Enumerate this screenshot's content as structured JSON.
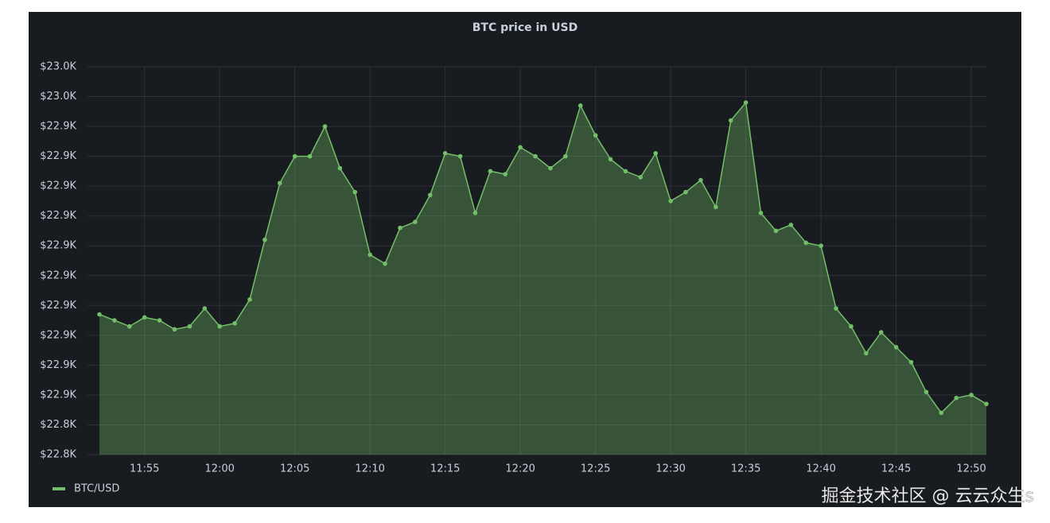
{
  "chart_data": {
    "type": "area",
    "title": "BTC price in USD",
    "categories": [
      null,
      null,
      null,
      "11:55",
      null,
      null,
      null,
      null,
      "12:00",
      null,
      null,
      null,
      null,
      "12:05",
      null,
      null,
      null,
      null,
      "12:10",
      null,
      null,
      null,
      null,
      "12:15",
      null,
      null,
      null,
      null,
      "12:20",
      null,
      null,
      null,
      null,
      "12:25",
      null,
      null,
      null,
      null,
      "12:30",
      null,
      null,
      null,
      null,
      "12:35",
      null,
      null,
      null,
      null,
      "12:40",
      null,
      null,
      null,
      null,
      "12:45",
      null,
      null,
      null,
      null,
      "12:50",
      null
    ],
    "series": [
      {
        "name": "BTC/USD",
        "color": "#73bf69",
        "values": [
          22877,
          22875,
          22873,
          22876,
          22875,
          22872,
          22873,
          22879,
          22873,
          22874,
          22882,
          22902,
          22921,
          22930,
          22930,
          22940,
          22926,
          22918,
          22897,
          22894,
          22906,
          22908,
          22917,
          22931,
          22930,
          22911,
          22925,
          22924,
          22933,
          22930,
          22926,
          22930,
          22947,
          22937,
          22929,
          22925,
          22923,
          22931,
          22915,
          22918,
          22922,
          22913,
          22942,
          22948,
          22911,
          22905,
          22907,
          22901,
          22900,
          22879,
          22873,
          22864,
          22871,
          22866,
          22861,
          22851,
          22844,
          22849,
          22850,
          22847
        ]
      }
    ],
    "ylim": [
      22830,
      22960
    ],
    "yticks": [
      {
        "value": 22830,
        "label": "$22.8K"
      },
      {
        "value": 22840,
        "label": "$22.8K"
      },
      {
        "value": 22850,
        "label": "$22.9K"
      },
      {
        "value": 22860,
        "label": "$22.9K"
      },
      {
        "value": 22870,
        "label": "$22.9K"
      },
      {
        "value": 22880,
        "label": "$22.9K"
      },
      {
        "value": 22890,
        "label": "$22.9K"
      },
      {
        "value": 22900,
        "label": "$22.9K"
      },
      {
        "value": 22910,
        "label": "$22.9K"
      },
      {
        "value": 22920,
        "label": "$22.9K"
      },
      {
        "value": 22930,
        "label": "$22.9K"
      },
      {
        "value": 22940,
        "label": "$22.9K"
      },
      {
        "value": 22950,
        "label": "$23.0K"
      },
      {
        "value": 22960,
        "label": "$23.0K"
      }
    ],
    "grid": true
  },
  "watermark": "掘金技术社区 @ 云云众生s"
}
